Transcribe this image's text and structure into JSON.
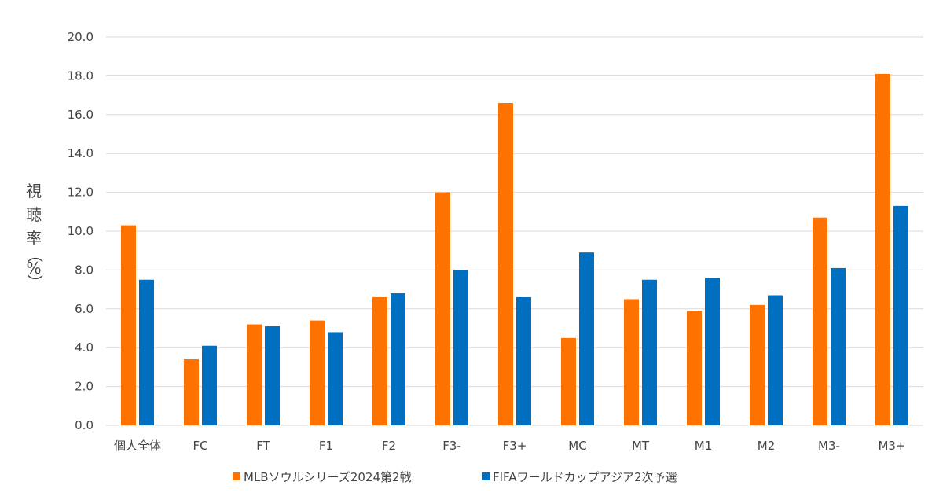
{
  "chart_data": {
    "type": "bar",
    "categories": [
      "個人全体",
      "FC",
      "FT",
      "F1",
      "F2",
      "F3-",
      "F3+",
      "MC",
      "MT",
      "M1",
      "M2",
      "M3-",
      "M3+"
    ],
    "series": [
      {
        "name": "MLBソウルシリーズ2024第2戦",
        "color": "#ff7200",
        "values": [
          10.3,
          3.4,
          5.2,
          5.4,
          6.6,
          12.0,
          16.6,
          4.5,
          6.5,
          5.9,
          6.2,
          10.7,
          18.1
        ]
      },
      {
        "name": "FIFAワールドカップアジア2次予選",
        "color": "#006fc0",
        "values": [
          7.5,
          4.1,
          5.1,
          4.8,
          6.8,
          8.0,
          6.6,
          8.9,
          7.5,
          7.6,
          6.7,
          8.1,
          11.3
        ]
      }
    ],
    "yticks": [
      "0.0",
      "2.0",
      "4.0",
      "6.0",
      "8.0",
      "10.0",
      "12.0",
      "14.0",
      "16.0",
      "18.0",
      "20.0"
    ],
    "ylim": [
      0,
      20
    ],
    "ylabel": [
      "視",
      "聴",
      "率",
      "（",
      "%",
      "）"
    ],
    "grid": true,
    "legend_position": "bottom"
  }
}
